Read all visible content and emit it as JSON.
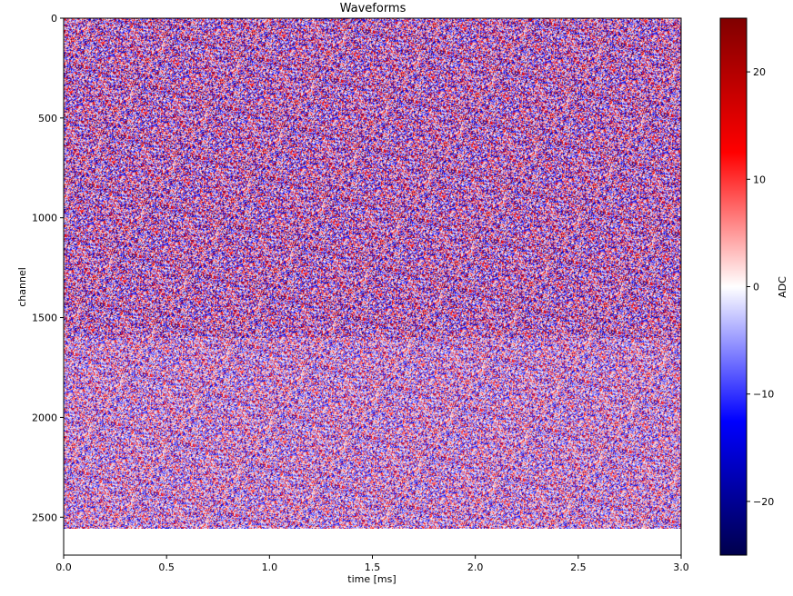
{
  "chart_data": {
    "type": "heatmap",
    "title": "Waveforms",
    "xlabel": "time [ms]",
    "ylabel": "channel",
    "xlim": [
      0.0,
      3.0
    ],
    "ylim": [
      2690,
      0
    ],
    "y_inverted": true,
    "n_channels": 2560,
    "xticks": [
      0.0,
      0.5,
      1.0,
      1.5,
      2.0,
      2.5,
      3.0
    ],
    "xtick_labels": [
      "0.0",
      "0.5",
      "1.0",
      "1.5",
      "2.0",
      "2.5",
      "3.0"
    ],
    "yticks": [
      0,
      500,
      1000,
      1500,
      2000,
      2500
    ],
    "ytick_labels": [
      "0",
      "500",
      "1000",
      "1500",
      "2000",
      "2500"
    ],
    "colormap": "seismic",
    "colorbar": {
      "label": "ADC",
      "range": [
        -25,
        25
      ],
      "ticks": [
        20,
        10,
        0,
        -10,
        -20
      ],
      "tick_labels": [
        "20",
        "10",
        "0",
        "−10",
        "−20"
      ]
    },
    "noise_regions": [
      {
        "channels": [
          0,
          1600
        ],
        "relative_amplitude": 1.0
      },
      {
        "channels": [
          1600,
          2560
        ],
        "relative_amplitude": 0.8
      }
    ],
    "grid": false
  }
}
